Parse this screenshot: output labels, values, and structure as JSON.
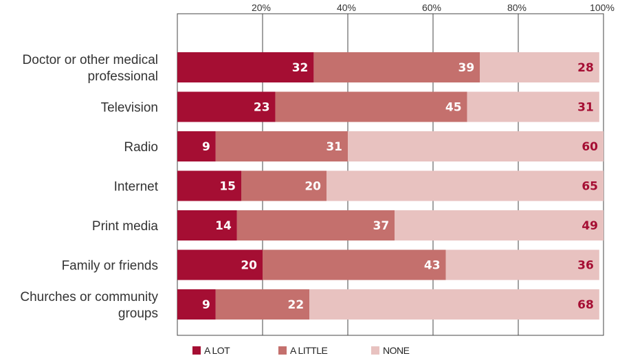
{
  "chart_data": {
    "type": "bar",
    "orientation": "horizontal",
    "stacked": true,
    "categories": [
      [
        "Doctor or other medical",
        "professional"
      ],
      [
        "Television"
      ],
      [
        "Radio"
      ],
      [
        "Internet"
      ],
      [
        "Print media"
      ],
      [
        "Family or friends"
      ],
      [
        "Churches or community",
        "groups"
      ]
    ],
    "series": [
      {
        "name": "A LOT",
        "color": "#a50e33",
        "label_color": "#ffffff",
        "values": [
          32,
          23,
          9,
          15,
          14,
          20,
          9
        ]
      },
      {
        "name": "A LITTLE",
        "color": "#c4706d",
        "label_color": "#ffffff",
        "values": [
          39,
          45,
          31,
          20,
          37,
          43,
          22
        ]
      },
      {
        "name": "NONE",
        "color": "#e8c2c0",
        "label_color": "#a50e33",
        "values": [
          28,
          31,
          60,
          65,
          49,
          36,
          68
        ]
      }
    ],
    "xlim": [
      0,
      100
    ],
    "xticks": [
      20,
      40,
      60,
      80,
      100
    ],
    "xtick_labels": [
      "20%",
      "40%",
      "60%",
      "80%",
      "100%"
    ],
    "grid": true,
    "legend_position": "bottom-left",
    "title": "",
    "xlabel": "",
    "ylabel": ""
  }
}
